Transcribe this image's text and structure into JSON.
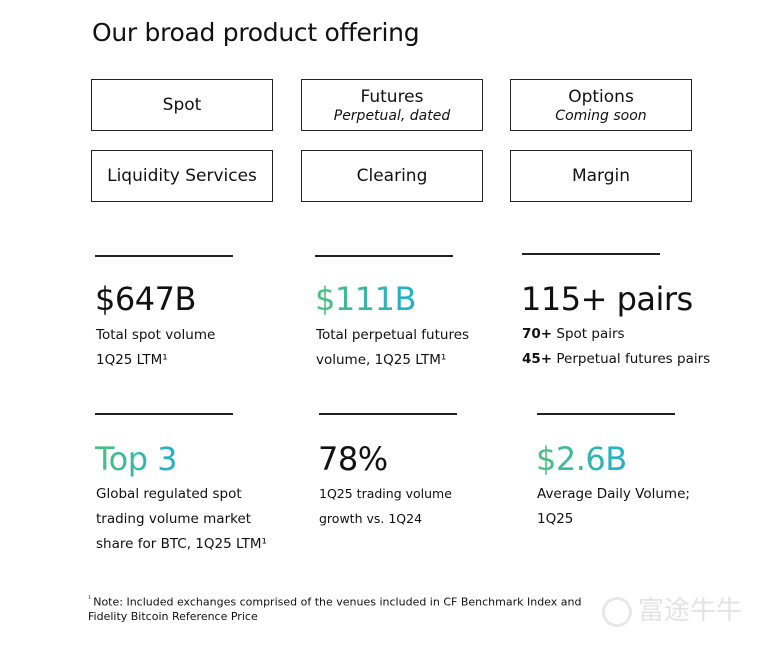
{
  "title": "Our broad product offering",
  "products": [
    {
      "label": "Spot",
      "sub": ""
    },
    {
      "label": "Futures",
      "sub": "Perpetual, dated"
    },
    {
      "label": "Options",
      "sub": "Coming soon"
    },
    {
      "label": "Liquidity Services",
      "sub": ""
    },
    {
      "label": "Clearing",
      "sub": ""
    },
    {
      "label": "Margin",
      "sub": ""
    }
  ],
  "stats": [
    {
      "value": "$647B",
      "lines": [
        "Total spot volume",
        "1Q25 LTM¹"
      ]
    },
    {
      "value": "$111B",
      "lines": [
        "Total perpetual futures",
        "volume, 1Q25 LTM¹"
      ]
    },
    {
      "value": "115+ pairs",
      "bold_lines": [
        {
          "b": "70+",
          "t": " Spot pairs"
        },
        {
          "b": "45+",
          "t": " Perpetual futures pairs"
        }
      ]
    },
    {
      "value": "Top 3",
      "lines": [
        "Global regulated spot",
        "trading volume market",
        "share for BTC, 1Q25 LTM¹"
      ]
    },
    {
      "value": "78%",
      "lines": [
        "1Q25 trading volume",
        "growth vs. 1Q24"
      ]
    },
    {
      "value": "$2.6B",
      "lines": [
        "Average Daily Volume;",
        "1Q25"
      ]
    }
  ],
  "footnote": {
    "mark": "¹",
    "text": "Note: Included exchanges comprised of the venues included in CF Benchmark Index and Fidelity Bitcoin Reference Price"
  },
  "watermark": "富途牛牛",
  "colors": {
    "gradient_start": "#4cc07a",
    "gradient_end": "#1fb0cf"
  }
}
